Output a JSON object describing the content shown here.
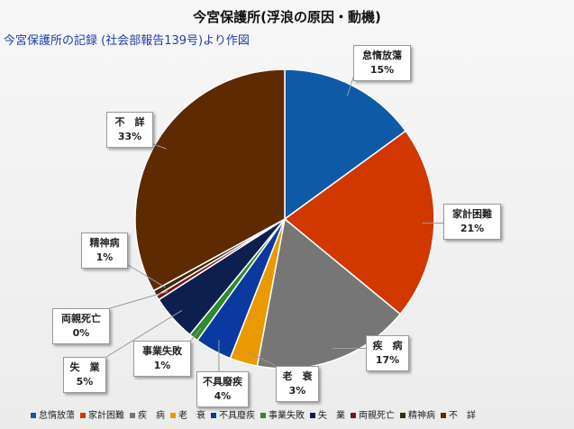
{
  "title": "今宮保護所(浮浪の原因・動機)",
  "subtitle": "今宮保護所の記録 (社会部報告139号)より作図",
  "chart_data": {
    "type": "pie",
    "slices": [
      {
        "name": "怠惰放蕩",
        "value": 15,
        "pct_label": "15%",
        "color": "#0e5aa7"
      },
      {
        "name": "家計困難",
        "value": 21,
        "pct_label": "21%",
        "color": "#d13800"
      },
      {
        "name": "疾　病",
        "value": 17,
        "pct_label": "17%",
        "color": "#767676"
      },
      {
        "name": "老　衰",
        "value": 3,
        "pct_label": "3%",
        "color": "#e89a00"
      },
      {
        "name": "不具廢疾",
        "value": 4,
        "pct_label": "4%",
        "color": "#0a3aa0"
      },
      {
        "name": "事業失敗",
        "value": 1,
        "pct_label": "1%",
        "color": "#2f8a2a"
      },
      {
        "name": "失　業",
        "value": 5,
        "pct_label": "5%",
        "color": "#0c1f4e"
      },
      {
        "name": "両親死亡",
        "value": 0.5,
        "pct_label": "0%",
        "color": "#7a1515"
      },
      {
        "name": "精神病",
        "value": 0.6,
        "pct_label": "1%",
        "color": "#3a2a10"
      },
      {
        "name": "不　詳",
        "value": 33,
        "pct_label": "33%",
        "color": "#5e2a00"
      }
    ],
    "legend_position": "bottom"
  }
}
